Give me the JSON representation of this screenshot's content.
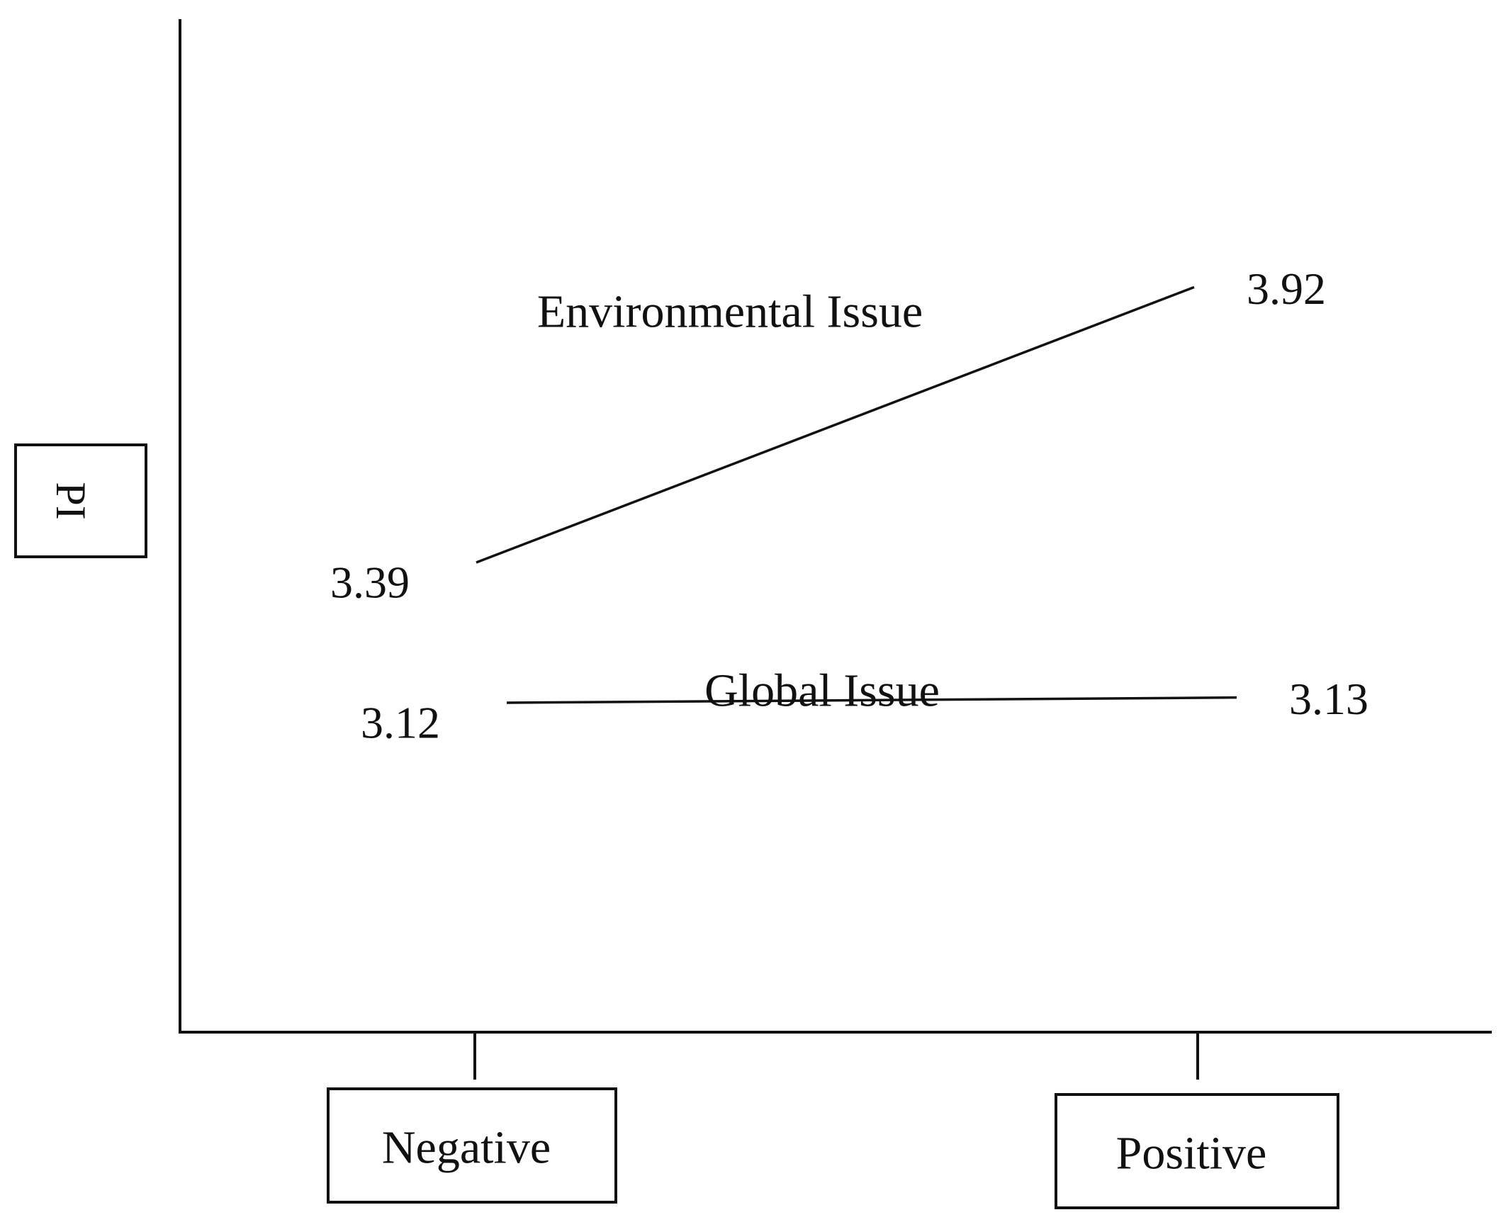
{
  "chart_data": {
    "type": "line",
    "title": "",
    "xlabel": "",
    "ylabel": "PI",
    "categories": [
      "Negative",
      "Positive"
    ],
    "series": [
      {
        "name": "Environmental Issue",
        "values": [
          3.39,
          3.92
        ]
      },
      {
        "name": "Global Issue",
        "values": [
          3.12,
          3.13
        ]
      }
    ],
    "ylim": [
      2.7,
      4.2
    ],
    "grid": false,
    "legend": "none",
    "value_labels": [
      "3.39",
      "3.92",
      "3.12",
      "3.13"
    ],
    "line_color": "#111111"
  }
}
